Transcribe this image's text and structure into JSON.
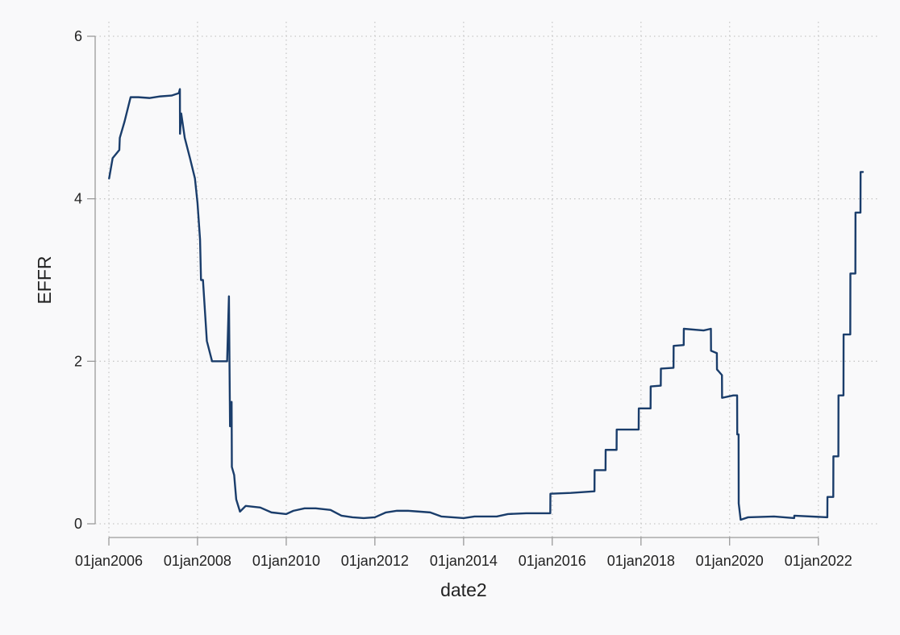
{
  "chart_data": {
    "type": "line",
    "title": "",
    "xlabel": "date2",
    "ylabel": "EFFR",
    "grid": true,
    "colors": {
      "series": "#1a3d6b",
      "background": "#f9f9fa"
    },
    "xlim": [
      "2006-01-01",
      "2023-01-03"
    ],
    "ylim": [
      0,
      6
    ],
    "x_ticks": [
      {
        "date": "2006-01-01",
        "label": "01jan2006"
      },
      {
        "date": "2008-01-01",
        "label": "01jan2008"
      },
      {
        "date": "2010-01-01",
        "label": "01jan2010"
      },
      {
        "date": "2012-01-01",
        "label": "01jan2012"
      },
      {
        "date": "2014-01-01",
        "label": "01jan2014"
      },
      {
        "date": "2016-01-01",
        "label": "01jan2016"
      },
      {
        "date": "2018-01-01",
        "label": "01jan2018"
      },
      {
        "date": "2020-01-01",
        "label": "01jan2020"
      },
      {
        "date": "2022-01-01",
        "label": "01jan2022"
      }
    ],
    "y_ticks": [
      {
        "value": 0,
        "label": "0"
      },
      {
        "value": 2,
        "label": "2"
      },
      {
        "value": 4,
        "label": "4"
      },
      {
        "value": 6,
        "label": "6"
      }
    ],
    "series": [
      {
        "points": [
          [
            "2006-01-03",
            4.25
          ],
          [
            "2006-02-01",
            4.5
          ],
          [
            "2006-03-28",
            4.6
          ],
          [
            "2006-04-01",
            4.75
          ],
          [
            "2006-05-10",
            4.95
          ],
          [
            "2006-06-29",
            5.25
          ],
          [
            "2006-09-01",
            5.25
          ],
          [
            "2006-12-01",
            5.24
          ],
          [
            "2007-03-01",
            5.26
          ],
          [
            "2007-06-01",
            5.27
          ],
          [
            "2007-07-31",
            5.3
          ],
          [
            "2007-08-09",
            5.35
          ],
          [
            "2007-08-10",
            4.8
          ],
          [
            "2007-08-20",
            5.05
          ],
          [
            "2007-09-18",
            4.75
          ],
          [
            "2007-10-31",
            4.5
          ],
          [
            "2007-12-11",
            4.25
          ],
          [
            "2008-01-01",
            3.95
          ],
          [
            "2008-01-22",
            3.5
          ],
          [
            "2008-01-30",
            3.0
          ],
          [
            "2008-02-15",
            3.0
          ],
          [
            "2008-03-18",
            2.25
          ],
          [
            "2008-04-30",
            2.0
          ],
          [
            "2008-06-01",
            2.0
          ],
          [
            "2008-09-01",
            2.0
          ],
          [
            "2008-09-16",
            2.8
          ],
          [
            "2008-09-25",
            1.2
          ],
          [
            "2008-10-08",
            1.5
          ],
          [
            "2008-10-10",
            0.7
          ],
          [
            "2008-10-29",
            0.6
          ],
          [
            "2008-11-15",
            0.3
          ],
          [
            "2008-12-16",
            0.15
          ],
          [
            "2009-02-01",
            0.22
          ],
          [
            "2009-06-01",
            0.2
          ],
          [
            "2009-09-01",
            0.14
          ],
          [
            "2010-01-01",
            0.12
          ],
          [
            "2010-03-01",
            0.16
          ],
          [
            "2010-06-01",
            0.19
          ],
          [
            "2010-09-01",
            0.19
          ],
          [
            "2011-01-01",
            0.17
          ],
          [
            "2011-04-01",
            0.1
          ],
          [
            "2011-07-01",
            0.08
          ],
          [
            "2011-10-01",
            0.07
          ],
          [
            "2012-01-01",
            0.08
          ],
          [
            "2012-04-01",
            0.14
          ],
          [
            "2012-07-01",
            0.16
          ],
          [
            "2012-10-01",
            0.16
          ],
          [
            "2013-01-01",
            0.15
          ],
          [
            "2013-04-01",
            0.14
          ],
          [
            "2013-07-01",
            0.09
          ],
          [
            "2013-10-01",
            0.08
          ],
          [
            "2014-01-01",
            0.07
          ],
          [
            "2014-04-01",
            0.09
          ],
          [
            "2014-07-01",
            0.09
          ],
          [
            "2014-10-01",
            0.09
          ],
          [
            "2015-01-01",
            0.12
          ],
          [
            "2015-06-01",
            0.13
          ],
          [
            "2015-12-16",
            0.13
          ],
          [
            "2015-12-17",
            0.37
          ],
          [
            "2016-06-01",
            0.38
          ],
          [
            "2016-12-14",
            0.4
          ],
          [
            "2016-12-15",
            0.66
          ],
          [
            "2017-03-15",
            0.66
          ],
          [
            "2017-03-16",
            0.91
          ],
          [
            "2017-06-14",
            0.91
          ],
          [
            "2017-06-15",
            1.16
          ],
          [
            "2017-12-13",
            1.16
          ],
          [
            "2017-12-14",
            1.42
          ],
          [
            "2018-03-21",
            1.42
          ],
          [
            "2018-03-22",
            1.69
          ],
          [
            "2018-06-13",
            1.7
          ],
          [
            "2018-06-14",
            1.91
          ],
          [
            "2018-09-26",
            1.92
          ],
          [
            "2018-09-27",
            2.19
          ],
          [
            "2018-12-19",
            2.2
          ],
          [
            "2018-12-20",
            2.4
          ],
          [
            "2019-06-01",
            2.38
          ],
          [
            "2019-07-31",
            2.4
          ],
          [
            "2019-08-01",
            2.13
          ],
          [
            "2019-09-18",
            2.1
          ],
          [
            "2019-09-19",
            1.9
          ],
          [
            "2019-10-30",
            1.83
          ],
          [
            "2019-10-31",
            1.55
          ],
          [
            "2020-02-01",
            1.58
          ],
          [
            "2020-03-03",
            1.58
          ],
          [
            "2020-03-04",
            1.1
          ],
          [
            "2020-03-15",
            1.1
          ],
          [
            "2020-03-16",
            0.25
          ],
          [
            "2020-04-01",
            0.05
          ],
          [
            "2020-06-01",
            0.08
          ],
          [
            "2021-01-01",
            0.09
          ],
          [
            "2021-06-16",
            0.07
          ],
          [
            "2021-06-17",
            0.1
          ],
          [
            "2022-03-16",
            0.08
          ],
          [
            "2022-03-17",
            0.33
          ],
          [
            "2022-05-04",
            0.33
          ],
          [
            "2022-05-05",
            0.83
          ],
          [
            "2022-06-15",
            0.83
          ],
          [
            "2022-06-16",
            1.58
          ],
          [
            "2022-07-27",
            1.58
          ],
          [
            "2022-07-28",
            2.33
          ],
          [
            "2022-09-21",
            2.33
          ],
          [
            "2022-09-22",
            3.08
          ],
          [
            "2022-11-02",
            3.08
          ],
          [
            "2022-11-03",
            3.83
          ],
          [
            "2022-12-14",
            3.83
          ],
          [
            "2022-12-15",
            4.33
          ],
          [
            "2023-01-03",
            4.33
          ]
        ]
      }
    ]
  }
}
